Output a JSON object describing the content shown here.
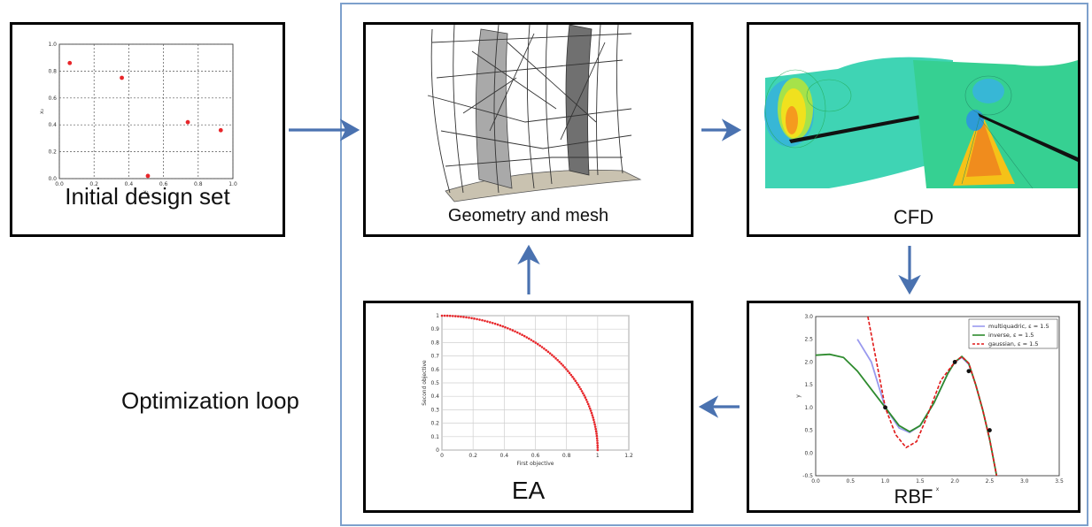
{
  "boxes": {
    "initial": {
      "caption": "Initial design set"
    },
    "geometry": {
      "caption": "Geometry and mesh"
    },
    "cfd": {
      "caption": "CFD"
    },
    "ea": {
      "caption": "EA"
    },
    "rbf": {
      "caption": "RBF"
    }
  },
  "loop_label": "Optimization loop",
  "colors": {
    "arrow": "#4a72b0",
    "frame": "#7da0cc",
    "point": "#e8262a"
  },
  "chart_data": [
    {
      "id": "initial-design-scatter",
      "type": "scatter",
      "xlabel": "x₁",
      "ylabel": "x₂",
      "xlim": [
        0,
        1
      ],
      "ylim": [
        0,
        1
      ],
      "xticks": [
        "0.0",
        "0.2",
        "0.4",
        "0.6",
        "0.8",
        "1.0"
      ],
      "yticks": [
        "0.0",
        "0.2",
        "0.4",
        "0.6",
        "0.8",
        "1.0"
      ],
      "grid": true,
      "points": [
        [
          0.06,
          0.86
        ],
        [
          0.36,
          0.75
        ],
        [
          0.51,
          0.02
        ],
        [
          0.74,
          0.42
        ],
        [
          0.93,
          0.36
        ]
      ]
    },
    {
      "id": "ea-pareto-front",
      "type": "scatter",
      "xlabel": "First objective",
      "ylabel": "Second objective",
      "xlim": [
        0,
        1.2
      ],
      "ylim": [
        0,
        1
      ],
      "xticks": [
        "0",
        "0.2",
        "0.4",
        "0.6",
        "0.8",
        "1",
        "1.2"
      ],
      "yticks": [
        "0",
        "0.1",
        "0.2",
        "0.3",
        "0.4",
        "0.5",
        "0.6",
        "0.7",
        "0.8",
        "0.9",
        "1"
      ],
      "grid": true,
      "curve": "quarter circle x² + y² = 1"
    },
    {
      "id": "rbf-interpolation",
      "type": "line",
      "xlabel": "x",
      "ylabel": "y",
      "xlim": [
        0,
        3.5
      ],
      "ylim": [
        -0.5,
        3.0
      ],
      "xticks": [
        "0.0",
        "0.5",
        "1.0",
        "1.5",
        "2.0",
        "2.5",
        "3.0",
        "3.5"
      ],
      "yticks": [
        "-0.5",
        "0.0",
        "0.5",
        "1.0",
        "1.5",
        "2.0",
        "2.5",
        "3.0"
      ],
      "legend_position": "top-right",
      "series": [
        {
          "name": "multiquadric, ε = 1.5",
          "color": "#9999ee",
          "style": "solid",
          "x": [
            0.6,
            0.8,
            1.0,
            1.2,
            1.35,
            1.5,
            1.7,
            1.9,
            2.0,
            2.1,
            2.2,
            2.3,
            2.4,
            2.5,
            2.6
          ],
          "y": [
            2.5,
            2.0,
            1.0,
            0.55,
            0.45,
            0.6,
            1.1,
            1.75,
            2.0,
            2.1,
            1.95,
            1.5,
            0.95,
            0.3,
            -0.5
          ]
        },
        {
          "name": "inverse, ε = 1.5",
          "color": "#2e8b2e",
          "style": "solid",
          "x": [
            0.0,
            0.2,
            0.4,
            0.6,
            0.8,
            1.0,
            1.2,
            1.35,
            1.5,
            1.7,
            1.9,
            2.0,
            2.1,
            2.2,
            2.3,
            2.4,
            2.5,
            2.6
          ],
          "y": [
            2.15,
            2.17,
            2.1,
            1.8,
            1.4,
            1.0,
            0.6,
            0.47,
            0.6,
            1.1,
            1.75,
            2.0,
            2.12,
            1.97,
            1.5,
            0.95,
            0.3,
            -0.5
          ]
        },
        {
          "name": "gaussian, ε = 1.5",
          "color": "#e01818",
          "style": "dashed",
          "x": [
            0.75,
            0.85,
            1.0,
            1.15,
            1.3,
            1.45,
            1.6,
            1.8,
            2.0,
            2.1,
            2.2,
            2.3,
            2.4,
            2.5,
            2.6
          ],
          "y": [
            3.0,
            2.2,
            1.0,
            0.4,
            0.12,
            0.25,
            0.8,
            1.6,
            2.0,
            2.12,
            1.97,
            1.5,
            0.95,
            0.3,
            -0.5
          ]
        }
      ],
      "sample_points": [
        [
          1.0,
          1.0
        ],
        [
          2.0,
          2.0
        ],
        [
          2.2,
          1.8
        ],
        [
          2.5,
          0.5
        ]
      ]
    }
  ]
}
